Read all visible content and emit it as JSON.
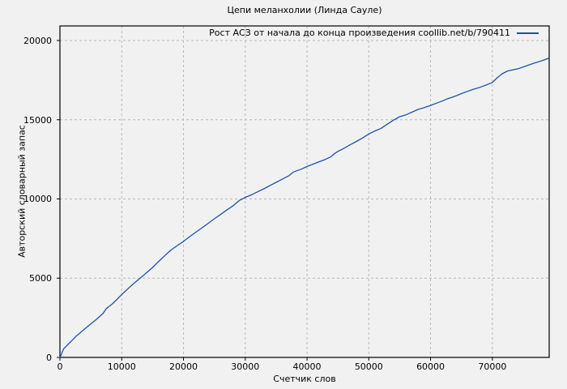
{
  "colors": {
    "background": "#f1f1f1",
    "plot_border": "#000000",
    "grid": "#b8b8b8",
    "text": "#000000",
    "accent_line": "#1b53a8"
  },
  "chart_data": {
    "type": "line",
    "title": "Цепи меланхолии (Линда Сауле)",
    "xlabel": "Счетчик слов",
    "ylabel": "Авторский словарный запас",
    "xlim": [
      0,
      79200
    ],
    "ylim": [
      0,
      20920
    ],
    "x_ticks": [
      0,
      10000,
      20000,
      30000,
      40000,
      50000,
      60000,
      70000
    ],
    "y_ticks": [
      0,
      5000,
      10000,
      15000,
      20000
    ],
    "grid": true,
    "legend_position": "top-right-inside",
    "series": [
      {
        "name": "Рост АСЗ от начала до конца произведения coollib.net/b/790411",
        "color": "#1b53a8",
        "points": [
          [
            0,
            0
          ],
          [
            600,
            540
          ],
          [
            1300,
            820
          ],
          [
            2000,
            1090
          ],
          [
            2600,
            1330
          ],
          [
            3300,
            1560
          ],
          [
            3900,
            1760
          ],
          [
            4600,
            1990
          ],
          [
            5200,
            2180
          ],
          [
            5900,
            2400
          ],
          [
            6500,
            2610
          ],
          [
            7000,
            2790
          ],
          [
            7500,
            3080
          ],
          [
            8000,
            3230
          ],
          [
            8500,
            3380
          ],
          [
            9200,
            3650
          ],
          [
            10000,
            3970
          ],
          [
            10500,
            4150
          ],
          [
            11000,
            4330
          ],
          [
            12000,
            4680
          ],
          [
            13000,
            5010
          ],
          [
            14000,
            5340
          ],
          [
            15000,
            5680
          ],
          [
            16000,
            6060
          ],
          [
            17000,
            6430
          ],
          [
            17600,
            6650
          ],
          [
            18000,
            6780
          ],
          [
            19000,
            7060
          ],
          [
            20000,
            7320
          ],
          [
            21000,
            7620
          ],
          [
            22000,
            7900
          ],
          [
            23000,
            8180
          ],
          [
            24000,
            8460
          ],
          [
            25000,
            8750
          ],
          [
            26000,
            9020
          ],
          [
            27000,
            9300
          ],
          [
            28000,
            9560
          ],
          [
            29000,
            9890
          ],
          [
            30000,
            10100
          ],
          [
            31000,
            10260
          ],
          [
            32000,
            10450
          ],
          [
            33000,
            10640
          ],
          [
            34000,
            10850
          ],
          [
            35000,
            11050
          ],
          [
            36000,
            11250
          ],
          [
            37000,
            11450
          ],
          [
            37800,
            11700
          ],
          [
            38500,
            11800
          ],
          [
            39200,
            11900
          ],
          [
            40000,
            12050
          ],
          [
            41000,
            12200
          ],
          [
            42000,
            12350
          ],
          [
            43000,
            12500
          ],
          [
            43800,
            12650
          ],
          [
            44500,
            12880
          ],
          [
            45000,
            13000
          ],
          [
            46000,
            13200
          ],
          [
            47000,
            13420
          ],
          [
            48000,
            13630
          ],
          [
            49000,
            13850
          ],
          [
            50000,
            14100
          ],
          [
            51000,
            14290
          ],
          [
            52000,
            14460
          ],
          [
            53000,
            14720
          ],
          [
            54000,
            14970
          ],
          [
            55000,
            15190
          ],
          [
            56000,
            15310
          ],
          [
            57000,
            15480
          ],
          [
            58000,
            15650
          ],
          [
            59000,
            15770
          ],
          [
            60000,
            15900
          ],
          [
            61000,
            16050
          ],
          [
            62000,
            16200
          ],
          [
            62600,
            16300
          ],
          [
            63500,
            16420
          ],
          [
            64200,
            16520
          ],
          [
            65000,
            16650
          ],
          [
            66000,
            16790
          ],
          [
            67000,
            16930
          ],
          [
            68000,
            17050
          ],
          [
            69000,
            17190
          ],
          [
            70000,
            17350
          ],
          [
            70800,
            17650
          ],
          [
            71600,
            17900
          ],
          [
            72500,
            18080
          ],
          [
            73300,
            18150
          ],
          [
            74200,
            18220
          ],
          [
            75000,
            18330
          ],
          [
            76000,
            18470
          ],
          [
            77000,
            18600
          ],
          [
            78000,
            18720
          ],
          [
            79100,
            18880
          ]
        ]
      }
    ]
  }
}
